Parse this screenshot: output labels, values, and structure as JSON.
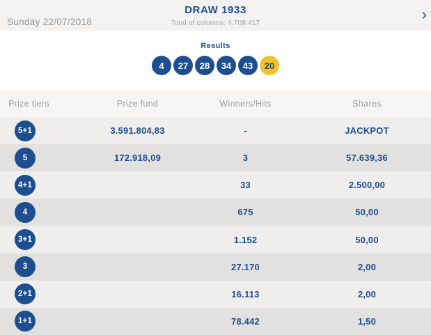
{
  "header": {
    "date": "Sunday 22/07/2018",
    "title": "DRAW 1933",
    "subtitle": "Total of columns: 4.709.417",
    "next_arrow": "›"
  },
  "results": {
    "label": "Results",
    "numbers": [
      {
        "value": "4",
        "type": "main"
      },
      {
        "value": "27",
        "type": "main"
      },
      {
        "value": "28",
        "type": "main"
      },
      {
        "value": "34",
        "type": "main"
      },
      {
        "value": "43",
        "type": "main"
      },
      {
        "value": "20",
        "type": "bonus"
      }
    ]
  },
  "table": {
    "columns": [
      "Prize tiers",
      "Prize fund",
      "Winners/Hits",
      "Shares"
    ],
    "rows": [
      {
        "tier": "5+1",
        "prize_fund": "3.591.804,83",
        "winners": "-",
        "shares": "JACKPOT"
      },
      {
        "tier": "5",
        "prize_fund": "172.918,09",
        "winners": "3",
        "shares": "57.639,36"
      },
      {
        "tier": "4+1",
        "prize_fund": "",
        "winners": "33",
        "shares": "2.500,00"
      },
      {
        "tier": "4",
        "prize_fund": "",
        "winners": "675",
        "shares": "50,00"
      },
      {
        "tier": "3+1",
        "prize_fund": "",
        "winners": "1.152",
        "shares": "50,00"
      },
      {
        "tier": "3",
        "prize_fund": "",
        "winners": "27.170",
        "shares": "2,00"
      },
      {
        "tier": "2+1",
        "prize_fund": "",
        "winners": "16.113",
        "shares": "2,00"
      },
      {
        "tier": "1+1",
        "prize_fund": "",
        "winners": "78.442",
        "shares": "1,50"
      }
    ]
  },
  "colors": {
    "navy": "#1d4e8f",
    "bonus_yellow": "#f2c12e",
    "bonus_text": "#28505c",
    "header_bar_bg": "#f3f2f0",
    "table_header_bg": "#f6f5f3",
    "row_odd_bg": "#efeeec",
    "row_even_bg": "#e2e1df",
    "muted_text": "#9aa0a6"
  }
}
